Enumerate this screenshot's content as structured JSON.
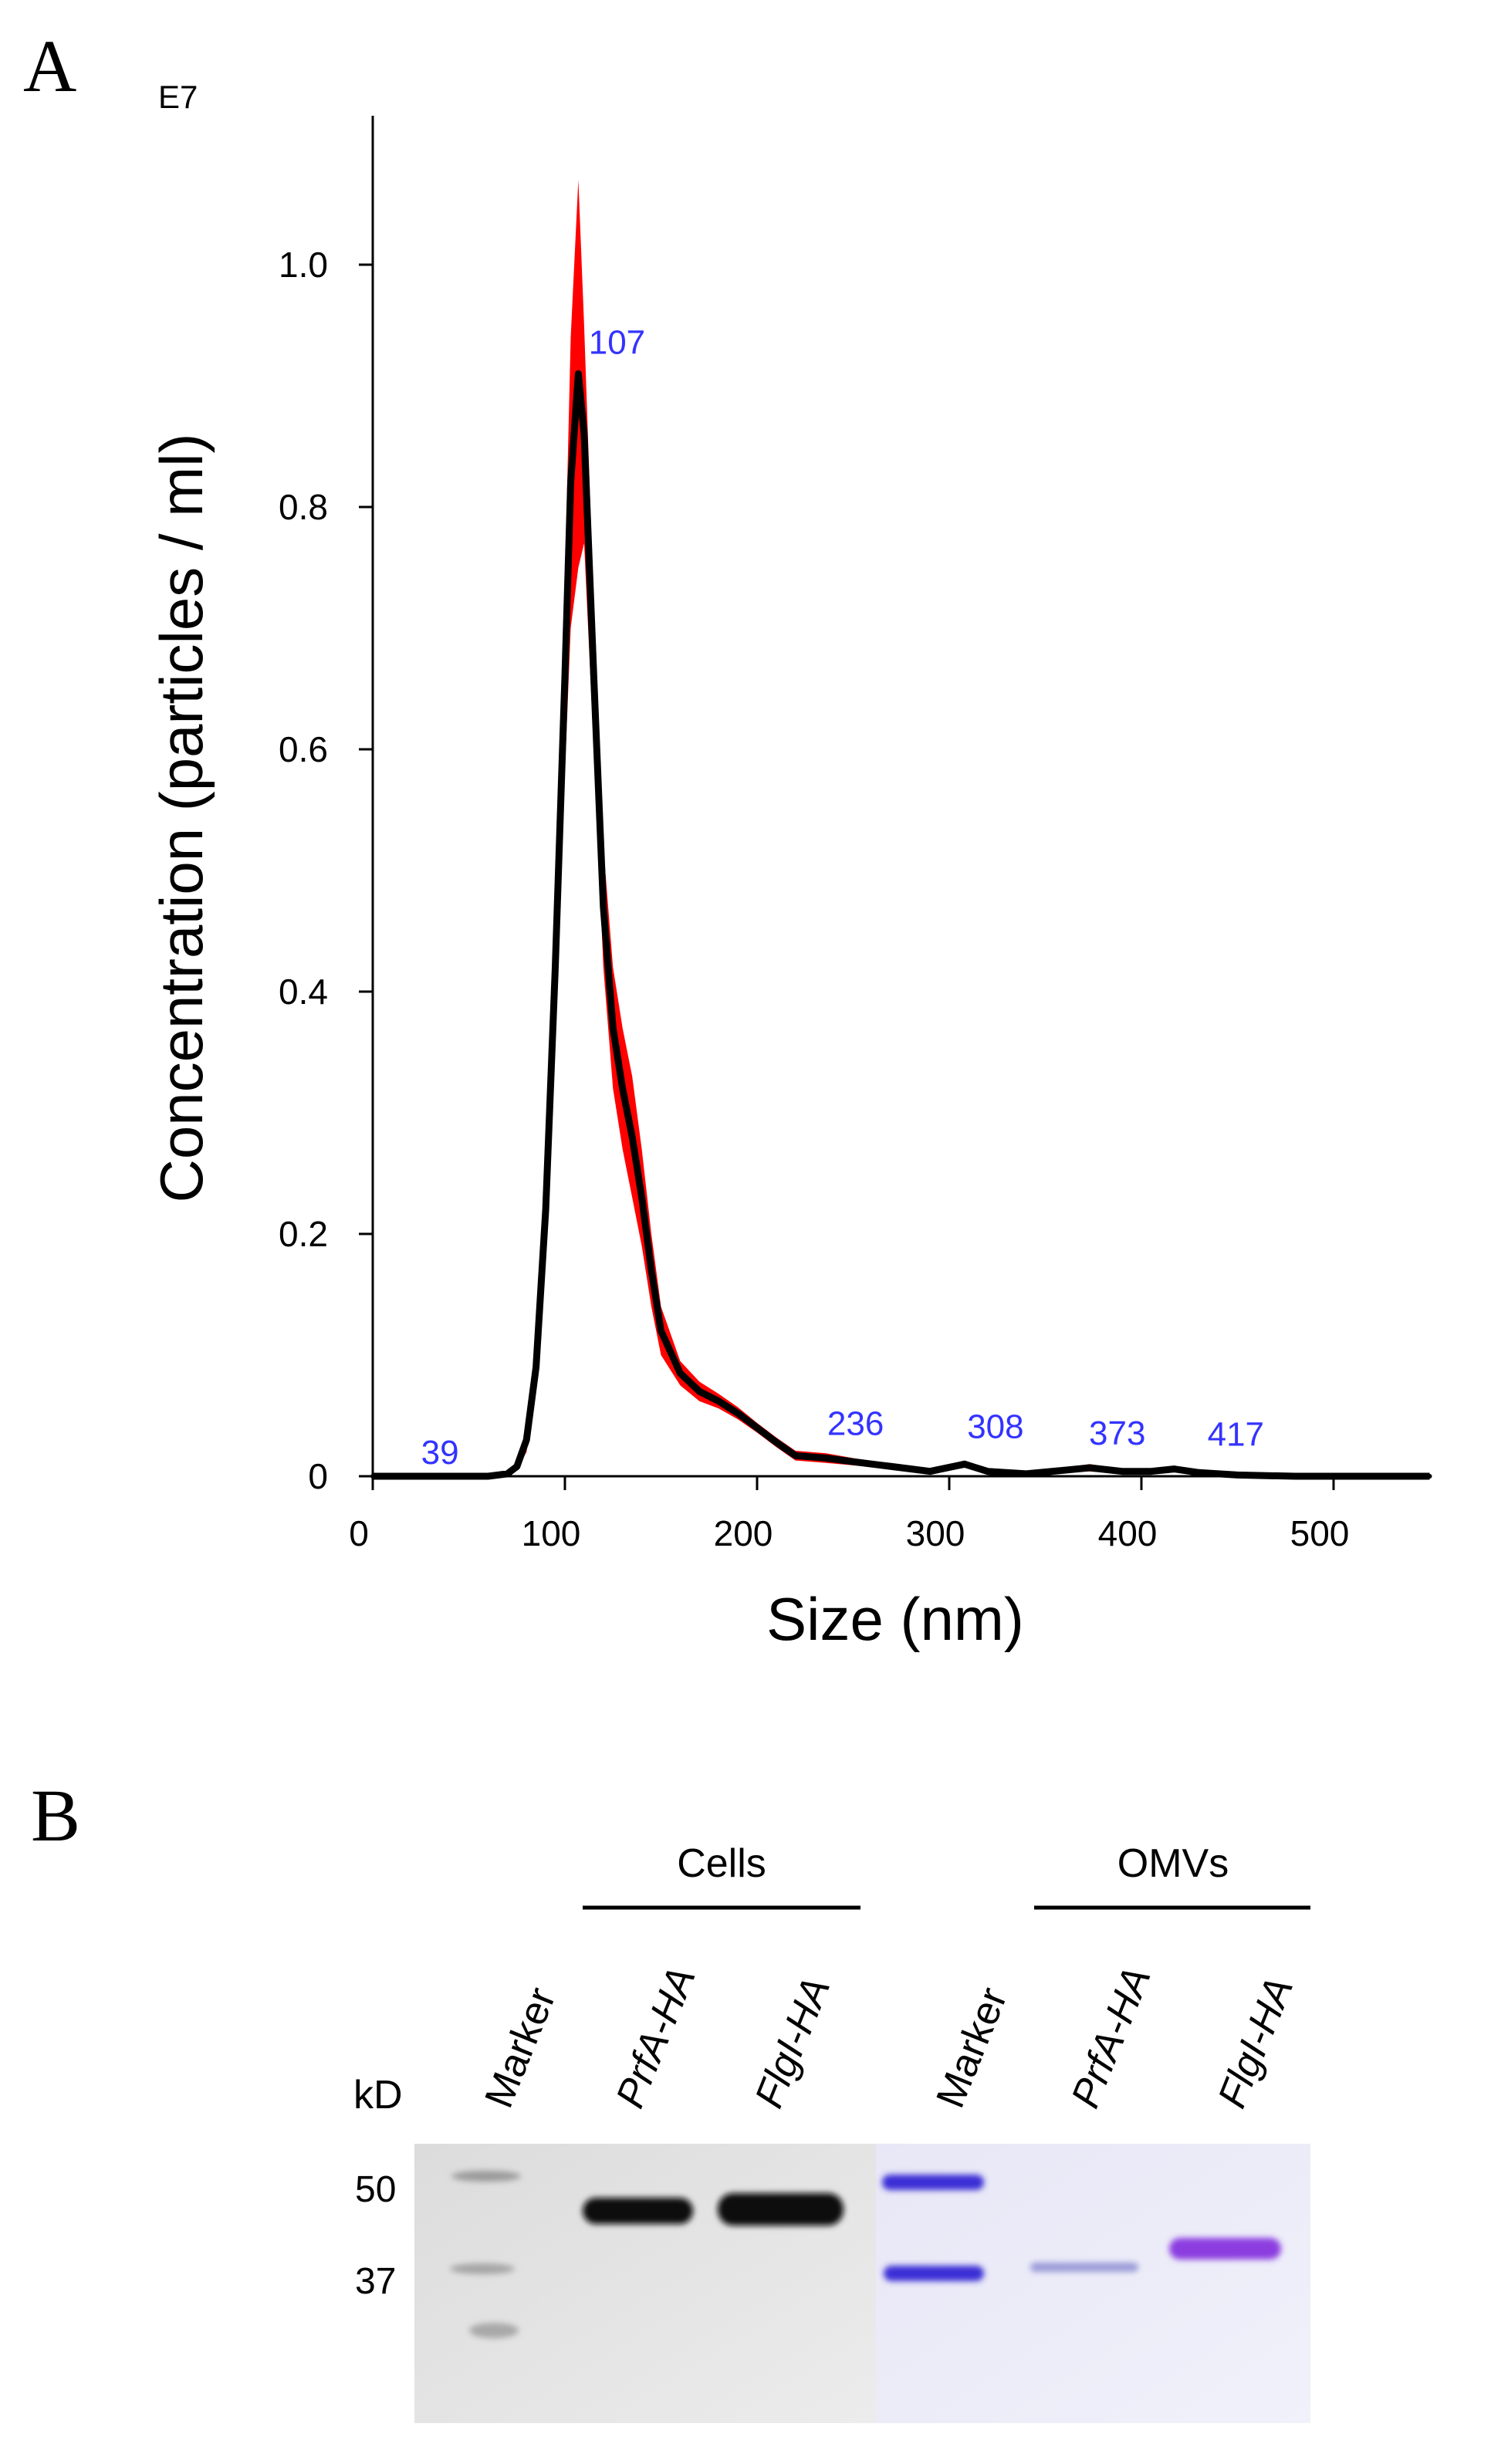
{
  "panel_a": {
    "letter": "A"
  },
  "panel_b": {
    "letter": "B",
    "group_cells": "Cells",
    "group_omvs": "OMVs",
    "kd_label": "kD",
    "lanes": [
      "Marker",
      "PrfA-HA",
      "FlgI-HA",
      "Marker",
      "PrfA-HA",
      "FlgI-HA"
    ],
    "mw_markers": [
      "50",
      "37"
    ],
    "colors": {
      "western_band": "#0a0a0a",
      "gel_stain": "#3b2fd6",
      "omv_band": "#8b3ee0"
    }
  },
  "chart_data": {
    "type": "line",
    "title": "",
    "xlabel": "Size (nm)",
    "ylabel": "Concentration (particles / ml)",
    "y_multiplier": "E7",
    "xlim": [
      0,
      550
    ],
    "ylim": [
      0,
      1.1
    ],
    "x_ticks": [
      "0",
      "100",
      "200",
      "300",
      "400",
      "500"
    ],
    "y_ticks": [
      "0",
      "0.2",
      "0.4",
      "0.6",
      "0.8",
      "1.0"
    ],
    "grid": false,
    "colors": {
      "mean": "#000000",
      "error_band": "#ff0000",
      "peak_labels": "#3333ff"
    },
    "series": [
      {
        "x": [
          0,
          39,
          60,
          70,
          75,
          80,
          85,
          90,
          95,
          100,
          103,
          107,
          110,
          115,
          120,
          125,
          130,
          135,
          140,
          145,
          150,
          160,
          170,
          180,
          190,
          200,
          210,
          220,
          236,
          250,
          270,
          290,
          308,
          320,
          340,
          360,
          373,
          390,
          405,
          417,
          430,
          450,
          480,
          500,
          550
        ],
        "y": [
          0,
          0,
          0,
          0.002,
          0.008,
          0.03,
          0.09,
          0.22,
          0.42,
          0.66,
          0.82,
          0.91,
          0.86,
          0.66,
          0.47,
          0.37,
          0.32,
          0.28,
          0.23,
          0.17,
          0.12,
          0.085,
          0.07,
          0.062,
          0.052,
          0.04,
          0.028,
          0.017,
          0.015,
          0.012,
          0.008,
          0.004,
          0.01,
          0.004,
          0.002,
          0.005,
          0.007,
          0.004,
          0.004,
          0.006,
          0.003,
          0.001,
          0,
          0,
          0
        ],
        "err": [
          0,
          0,
          0,
          0.001,
          0.003,
          0.01,
          0.02,
          0.03,
          0.05,
          0.08,
          0.12,
          0.16,
          0.09,
          0.06,
          0.05,
          0.05,
          0.05,
          0.05,
          0.04,
          0.03,
          0.02,
          0.01,
          0.008,
          0.006,
          0.005,
          0.004,
          0.004,
          0.004,
          0.004,
          0.003,
          0.002,
          0.002,
          0.003,
          0.002,
          0.001,
          0.002,
          0.003,
          0.002,
          0.002,
          0.002,
          0.001,
          0.001,
          0,
          0,
          0
        ]
      }
    ],
    "annotations": [
      {
        "x": 39,
        "y": 0,
        "text": "39"
      },
      {
        "x": 107,
        "y": 0.91,
        "text": "107"
      },
      {
        "x": 236,
        "y": 0.015,
        "text": "236"
      },
      {
        "x": 308,
        "y": 0.01,
        "text": "308"
      },
      {
        "x": 373,
        "y": 0.007,
        "text": "373"
      },
      {
        "x": 417,
        "y": 0.006,
        "text": "417"
      }
    ]
  }
}
